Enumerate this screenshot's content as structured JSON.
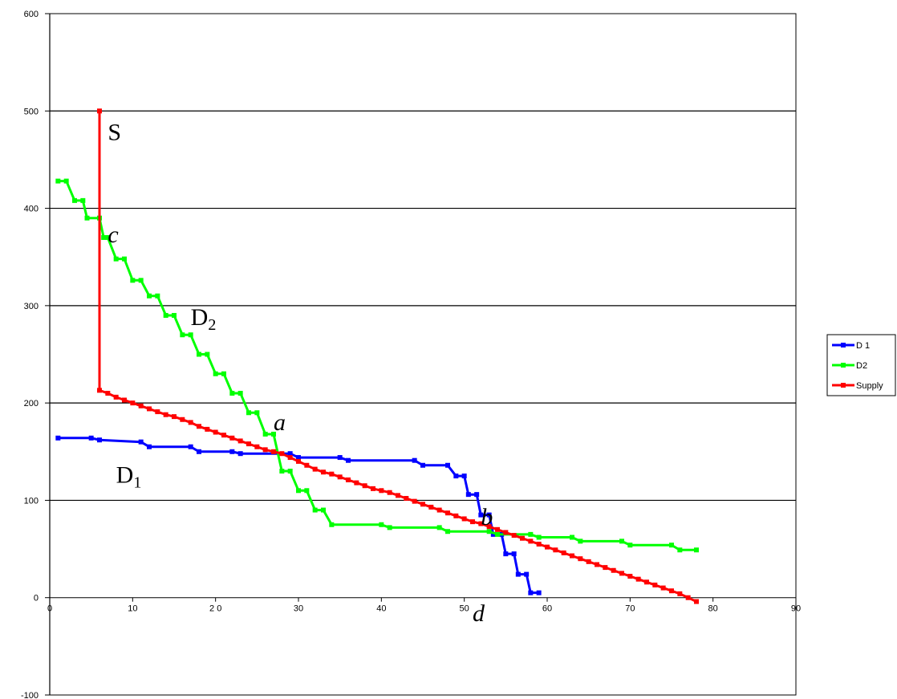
{
  "chart_data": {
    "type": "line",
    "title": "",
    "xlabel": "",
    "ylabel": "",
    "xlim": [
      0,
      90
    ],
    "ylim": [
      -100,
      600
    ],
    "x_ticks": [
      "0",
      "10",
      "2 0",
      "30",
      "40",
      "50",
      "60",
      "70",
      "80",
      "90"
    ],
    "x_tick_values": [
      0,
      10,
      20,
      30,
      40,
      50,
      60,
      70,
      80,
      90
    ],
    "y_ticks": [
      "600",
      "500",
      "400",
      "300",
      "200",
      "100",
      "0",
      "-100"
    ],
    "y_tick_values": [
      600,
      500,
      400,
      300,
      200,
      100,
      0,
      -100
    ],
    "grid": "horizontal",
    "legend_position": "right",
    "series": [
      {
        "name": "D 1",
        "color": "#0000ff",
        "points": [
          [
            1,
            164
          ],
          [
            5,
            164
          ],
          [
            6,
            162
          ],
          [
            11,
            160
          ],
          [
            12,
            155
          ],
          [
            17,
            155
          ],
          [
            18,
            150
          ],
          [
            22,
            150
          ],
          [
            23,
            148
          ],
          [
            29,
            148
          ],
          [
            30,
            144
          ],
          [
            35,
            144
          ],
          [
            36,
            141
          ],
          [
            44,
            141
          ],
          [
            45,
            136
          ],
          [
            48,
            136
          ],
          [
            49,
            125
          ],
          [
            50,
            125
          ],
          [
            50.5,
            106
          ],
          [
            51.5,
            106
          ],
          [
            52,
            85
          ],
          [
            53,
            85
          ],
          [
            53.5,
            65
          ],
          [
            54.5,
            65
          ],
          [
            55,
            45
          ],
          [
            56,
            45
          ],
          [
            56.5,
            24
          ],
          [
            57.5,
            24
          ],
          [
            58,
            5
          ],
          [
            59,
            5
          ]
        ]
      },
      {
        "name": "D2",
        "color": "#00ff00",
        "points": [
          [
            1,
            428
          ],
          [
            2,
            428
          ],
          [
            3,
            408
          ],
          [
            4,
            408
          ],
          [
            4.5,
            390
          ],
          [
            6,
            390
          ],
          [
            6.5,
            370
          ],
          [
            7,
            370
          ],
          [
            8,
            348
          ],
          [
            9,
            348
          ],
          [
            10,
            326
          ],
          [
            11,
            326
          ],
          [
            12,
            310
          ],
          [
            13,
            310
          ],
          [
            14,
            290
          ],
          [
            15,
            290
          ],
          [
            16,
            270
          ],
          [
            17,
            270
          ],
          [
            18,
            250
          ],
          [
            19,
            250
          ],
          [
            20,
            230
          ],
          [
            21,
            230
          ],
          [
            22,
            210
          ],
          [
            23,
            210
          ],
          [
            24,
            190
          ],
          [
            25,
            190
          ],
          [
            26,
            168
          ],
          [
            27,
            168
          ],
          [
            28,
            130
          ],
          [
            29,
            130
          ],
          [
            30,
            110
          ],
          [
            31,
            110
          ],
          [
            32,
            90
          ],
          [
            33,
            90
          ],
          [
            34,
            75
          ],
          [
            40,
            75
          ],
          [
            41,
            72
          ],
          [
            47,
            72
          ],
          [
            48,
            68
          ],
          [
            53,
            68
          ],
          [
            54,
            65
          ],
          [
            58,
            65
          ],
          [
            59,
            62
          ],
          [
            63,
            62
          ],
          [
            64,
            58
          ],
          [
            69,
            58
          ],
          [
            70,
            54
          ],
          [
            75,
            54
          ],
          [
            76,
            49
          ],
          [
            78,
            49
          ]
        ]
      },
      {
        "name": "Supply",
        "color": "#ff0000",
        "points": [
          [
            6,
            500
          ],
          [
            6,
            213
          ],
          [
            7,
            210
          ],
          [
            8,
            206
          ],
          [
            9,
            203
          ],
          [
            10,
            200
          ],
          [
            11,
            197
          ],
          [
            12,
            194
          ],
          [
            13,
            191
          ],
          [
            14,
            188
          ],
          [
            15,
            186
          ],
          [
            16,
            183
          ],
          [
            17,
            180
          ],
          [
            18,
            176
          ],
          [
            19,
            173
          ],
          [
            20,
            170
          ],
          [
            21,
            167
          ],
          [
            22,
            164
          ],
          [
            23,
            161
          ],
          [
            24,
            158
          ],
          [
            25,
            155
          ],
          [
            26,
            152
          ],
          [
            27,
            150
          ],
          [
            28,
            148
          ],
          [
            29,
            144
          ],
          [
            30,
            140
          ],
          [
            31,
            136
          ],
          [
            32,
            132
          ],
          [
            33,
            129
          ],
          [
            34,
            127
          ],
          [
            35,
            124
          ],
          [
            36,
            121
          ],
          [
            37,
            118
          ],
          [
            38,
            115
          ],
          [
            39,
            112
          ],
          [
            40,
            110
          ],
          [
            41,
            108
          ],
          [
            42,
            105
          ],
          [
            43,
            102
          ],
          [
            44,
            99
          ],
          [
            45,
            96
          ],
          [
            46,
            93
          ],
          [
            47,
            90
          ],
          [
            48,
            87
          ],
          [
            49,
            84
          ],
          [
            50,
            81
          ],
          [
            51,
            78
          ],
          [
            52,
            76
          ],
          [
            53,
            73
          ],
          [
            54,
            70
          ],
          [
            55,
            67
          ],
          [
            56,
            64
          ],
          [
            57,
            61
          ],
          [
            58,
            58
          ],
          [
            59,
            55
          ],
          [
            60,
            52
          ],
          [
            61,
            49
          ],
          [
            62,
            46
          ],
          [
            63,
            43
          ],
          [
            64,
            40
          ],
          [
            65,
            37
          ],
          [
            66,
            34
          ],
          [
            67,
            31
          ],
          [
            68,
            28
          ],
          [
            69,
            25
          ],
          [
            70,
            22
          ],
          [
            71,
            19
          ],
          [
            72,
            16
          ],
          [
            73,
            13
          ],
          [
            74,
            10
          ],
          [
            75,
            7
          ],
          [
            76,
            4
          ],
          [
            77,
            0
          ],
          [
            78,
            -4
          ]
        ]
      }
    ],
    "annotations": [
      {
        "id": "label-s",
        "text": "S",
        "x": 7,
        "y": 470,
        "italic": false
      },
      {
        "id": "label-c",
        "text": "c",
        "x": 7,
        "y": 365,
        "italic": true
      },
      {
        "id": "label-d2",
        "text": "D",
        "sub": "2",
        "x": 17,
        "y": 280,
        "italic": false
      },
      {
        "id": "label-a",
        "text": "a",
        "x": 27,
        "y": 172,
        "italic": true
      },
      {
        "id": "label-d1",
        "text": "D",
        "sub": "1",
        "x": 8,
        "y": 118,
        "italic": false
      },
      {
        "id": "label-b",
        "text": "b",
        "x": 52,
        "y": 75,
        "italic": true
      },
      {
        "id": "label-d",
        "text": "d",
        "x": 51,
        "y": -24,
        "italic": true
      }
    ]
  }
}
